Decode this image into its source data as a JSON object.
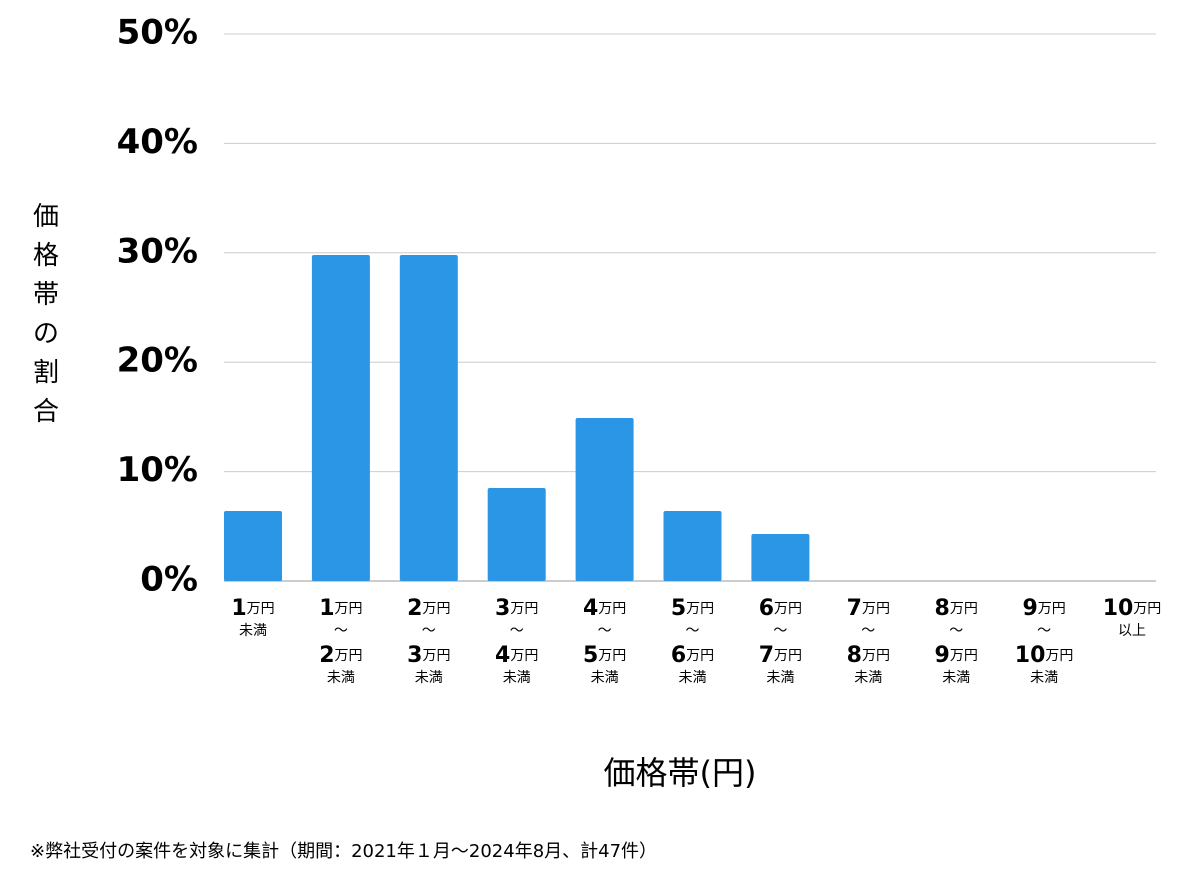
{
  "chart_data": {
    "type": "bar",
    "y_axis_label": "価格帯の割合",
    "x_axis_label": "価格帯(円)",
    "footnote": "※弊社受付の案件を対象に集計（期間：2021年１月～2024年8月、計47件）",
    "categories": [
      "1万円\n未満",
      "1万円\n～\n2万円\n未満",
      "2万円\n～\n3万円\n未満",
      "3万円\n～\n4万円\n未満",
      "4万円\n～\n5万円\n未満",
      "5万円\n～\n6万円\n未満",
      "6万円\n～\n7万円\n未満",
      "7万円\n～\n8万円\n未満",
      "8万円\n～\n9万円\n未満",
      "9万円\n～\n10万円\n未満",
      "10万円\n以上"
    ],
    "values": [
      6.4,
      29.8,
      29.8,
      8.5,
      14.9,
      6.4,
      4.3,
      0,
      0,
      0,
      0
    ],
    "color": "#2b95e6",
    "ylim": [
      0,
      50
    ],
    "yticks": [
      {
        "value": 0,
        "label": "0%"
      },
      {
        "value": 10,
        "label": "10%"
      },
      {
        "value": 20,
        "label": "20%"
      },
      {
        "value": 30,
        "label": "30%"
      },
      {
        "value": 40,
        "label": "40%"
      },
      {
        "value": 50,
        "label": "50%"
      }
    ],
    "grid": true
  }
}
